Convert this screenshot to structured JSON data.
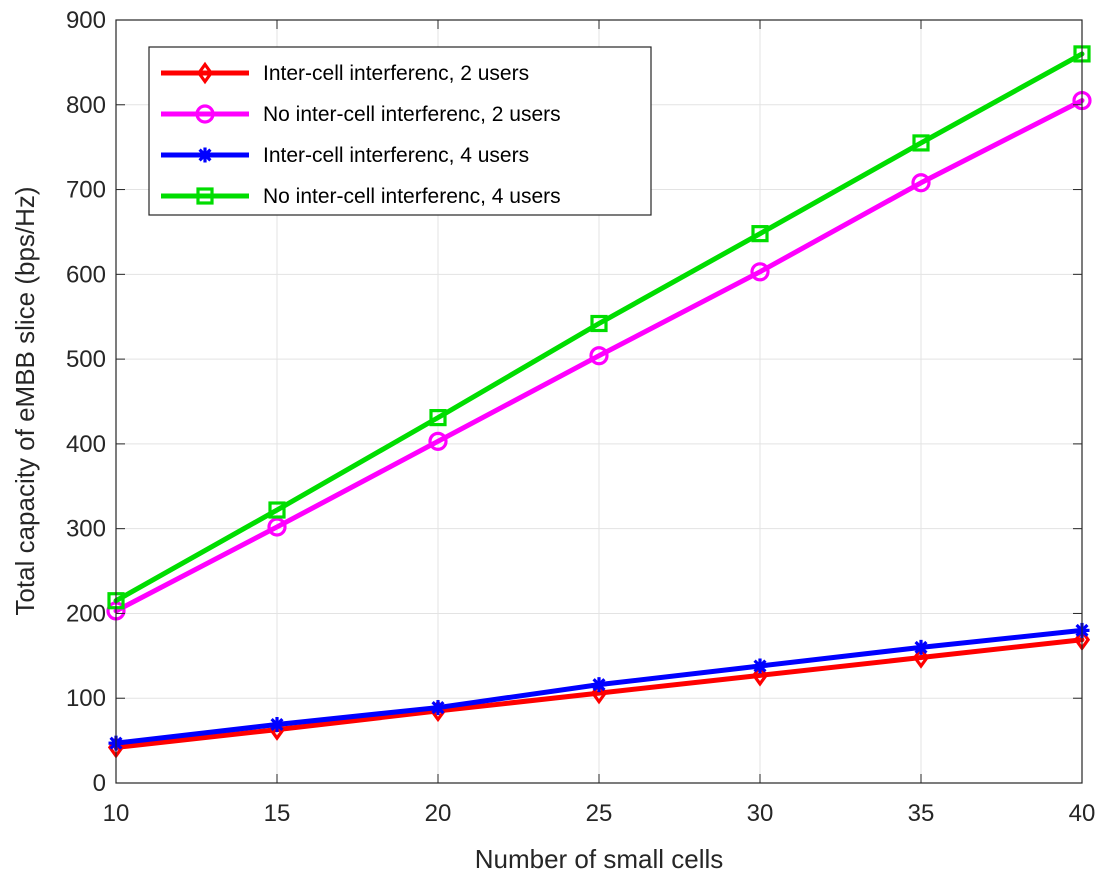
{
  "chart_data": {
    "type": "line",
    "title": "",
    "xlabel": "Number of small cells",
    "ylabel": "Total capacity of eMBB slice (bps/Hz)",
    "xlim": [
      10,
      40
    ],
    "ylim": [
      0,
      900
    ],
    "xticks": [
      10,
      15,
      20,
      25,
      30,
      35,
      40
    ],
    "yticks": [
      0,
      100,
      200,
      300,
      400,
      500,
      600,
      700,
      800,
      900
    ],
    "x": [
      10,
      15,
      20,
      25,
      30,
      35,
      40
    ],
    "grid": true,
    "legend_position": "top-left",
    "series": [
      {
        "name": "Inter-cell interferenc, 2 users",
        "color": "#ff0000",
        "marker": "diamond",
        "values": [
          42,
          63,
          85,
          106,
          127,
          148,
          169
        ]
      },
      {
        "name": "No inter-cell interferenc, 2 users",
        "color": "#ff00ff",
        "marker": "circle",
        "values": [
          203,
          302,
          403,
          504,
          603,
          708,
          805
        ]
      },
      {
        "name": "Inter-cell interferenc, 4 users",
        "color": "#0000ff",
        "marker": "asterisk",
        "values": [
          47,
          69,
          89,
          116,
          138,
          160,
          180
        ]
      },
      {
        "name": "No inter-cell interferenc, 4 users",
        "color": "#00dd00",
        "marker": "square",
        "values": [
          215,
          322,
          431,
          542,
          648,
          755,
          860
        ]
      }
    ]
  }
}
